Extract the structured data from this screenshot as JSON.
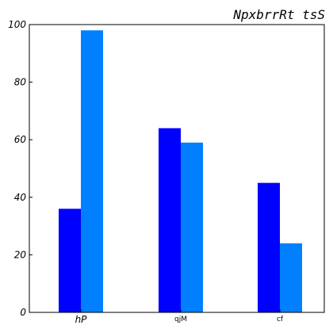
{
  "chart_data": {
    "type": "bar",
    "title": "NpxbrrRt tsS",
    "categories": [
      "hP",
      "qjM",
      "cf"
    ],
    "series": [
      {
        "values": [
          36,
          64,
          45
        ],
        "color": "#0000ff"
      },
      {
        "values": [
          98,
          59,
          24
        ],
        "color": "#0080ff"
      }
    ],
    "ylim": [
      0,
      100
    ],
    "yticks": [
      0,
      20,
      40,
      60,
      80,
      100
    ],
    "xlabel": "",
    "ylabel": "",
    "grid": false
  }
}
